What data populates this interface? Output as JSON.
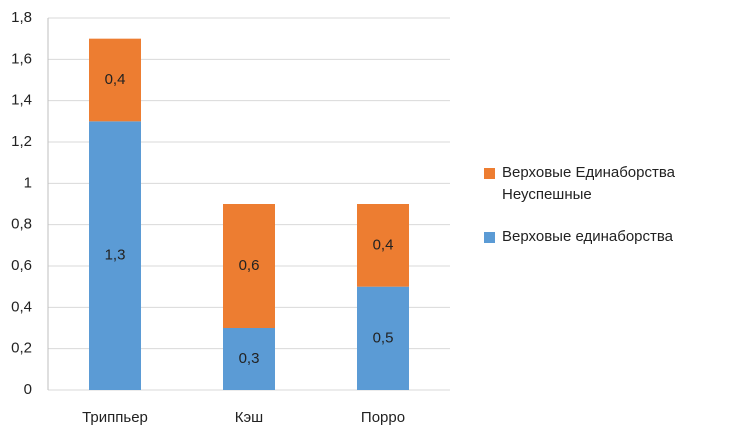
{
  "chart_data": {
    "type": "stacked_bar",
    "categories": [
      "Триппьер",
      "Кэш",
      "Порро"
    ],
    "series": [
      {
        "name": "Верховые единаборства",
        "color": "#5b9bd5",
        "values": [
          1.3,
          0.3,
          0.5
        ],
        "value_labels": [
          "1,3",
          "0,3",
          "0,5"
        ]
      },
      {
        "name": "Верховые Единаборства Неуспешные",
        "color": "#ed7d31",
        "values": [
          0.4,
          0.6,
          0.4
        ],
        "value_labels": [
          "0,4",
          "0,6",
          "0,4"
        ]
      }
    ],
    "ylim": [
      0,
      1.8
    ],
    "yticks": [
      0,
      {
        "value": 0.2,
        "label": "0,2"
      },
      {
        "value": 0.4,
        "label": "0,4"
      },
      {
        "value": 0.6,
        "label": "0,6"
      },
      {
        "value": 0.8,
        "label": "0,8"
      },
      1,
      {
        "value": 1.2,
        "label": "1,2"
      },
      {
        "value": 1.4,
        "label": "1,4"
      },
      {
        "value": 1.6,
        "label": "1,6"
      },
      {
        "value": 1.8,
        "label": "1,8"
      }
    ],
    "grid": true,
    "legend": "right"
  }
}
